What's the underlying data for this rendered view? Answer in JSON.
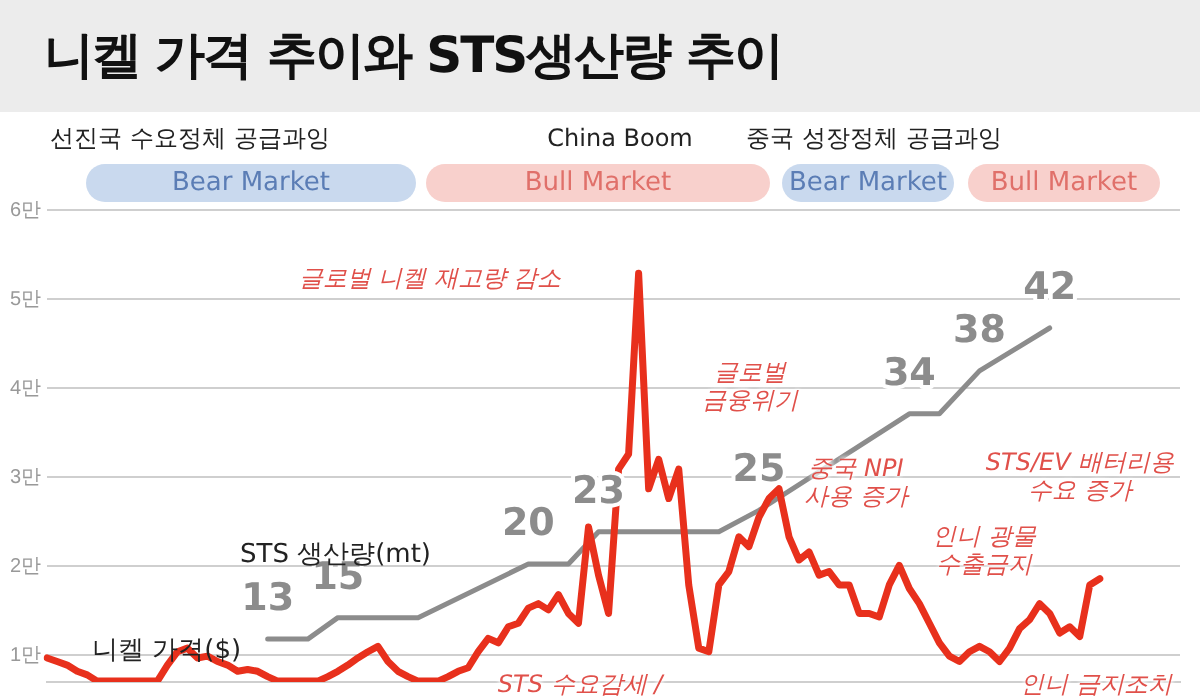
{
  "chart_data": {
    "type": "line",
    "title": "니켈 가격 추이와 STS생산량 추이",
    "categories": [
      null,
      null,
      null,
      null,
      null,
      null,
      null,
      null,
      null,
      null,
      null,
      null,
      null,
      null,
      null,
      null,
      null,
      null,
      null,
      null,
      null,
      null,
      null,
      null,
      null,
      null,
      null,
      null,
      null,
      null,
      null,
      null,
      null,
      null,
      null,
      null,
      null,
      null,
      null,
      null,
      null,
      null,
      null,
      null,
      null,
      null,
      null,
      null,
      null,
      null,
      null,
      null,
      null,
      null,
      null,
      null,
      null,
      null,
      null,
      null,
      null,
      null,
      null,
      null,
      null,
      null,
      null,
      null,
      null,
      null,
      null,
      null,
      null,
      null,
      null,
      null,
      null,
      null,
      null,
      null,
      null,
      null,
      null,
      null,
      null,
      null,
      null,
      null,
      null,
      null,
      null,
      null,
      null,
      null,
      null,
      null,
      null,
      null,
      null,
      null,
      null,
      null,
      null,
      null,
      null,
      null,
      null,
      null,
      null,
      null,
      null,
      null,
      null,
      null
    ],
    "series": [
      {
        "name": "니켈 가격($)",
        "color": "#e8301c",
        "values": [
          0.97,
          0.93,
          0.89,
          0.82,
          0.78,
          0.71,
          0.71,
          0.71,
          0.71,
          0.71,
          0.71,
          0.71,
          0.89,
          1.04,
          1.08,
          0.97,
          0.99,
          0.93,
          0.89,
          0.82,
          0.84,
          0.82,
          0.76,
          0.71,
          0.71,
          0.71,
          0.71,
          0.71,
          0.76,
          0.82,
          0.89,
          0.97,
          1.04,
          1.1,
          0.93,
          0.82,
          0.76,
          0.71,
          0.71,
          0.71,
          0.76,
          0.82,
          0.86,
          1.04,
          1.19,
          1.14,
          1.32,
          1.36,
          1.53,
          1.58,
          1.51,
          1.68,
          1.47,
          1.36,
          2.44,
          1.9,
          1.47,
          3.09,
          3.26,
          5.29,
          2.87,
          3.2,
          2.76,
          3.09,
          1.79,
          1.08,
          1.04,
          1.79,
          1.94,
          2.33,
          2.22,
          2.55,
          2.76,
          2.87,
          2.33,
          2.07,
          2.16,
          1.9,
          1.94,
          1.79,
          1.79,
          1.47,
          1.47,
          1.43,
          1.79,
          2.01,
          1.75,
          1.58,
          1.36,
          1.14,
          0.99,
          0.93,
          1.04,
          1.1,
          1.04,
          0.93,
          1.08,
          1.3,
          1.4,
          1.58,
          1.47,
          1.25,
          1.32,
          1.21,
          1.79,
          1.86,
          null,
          null,
          null,
          null,
          null,
          null,
          null,
          null
        ]
      },
      {
        "name": "STS 생산량(mt)",
        "color": "#8c8c8c",
        "axis": "y2",
        "values": [
          null,
          null,
          null,
          null,
          null,
          null,
          null,
          null,
          null,
          null,
          null,
          null,
          null,
          null,
          null,
          null,
          null,
          null,
          null,
          null,
          null,
          null,
          13,
          null,
          null,
          null,
          13,
          null,
          null,
          15,
          null,
          null,
          null,
          null,
          null,
          null,
          null,
          15,
          null,
          null,
          null,
          null,
          null,
          null,
          null,
          null,
          null,
          null,
          20,
          null,
          null,
          null,
          20,
          null,
          null,
          23,
          null,
          null,
          null,
          null,
          null,
          null,
          null,
          null,
          null,
          null,
          null,
          23,
          null,
          null,
          null,
          25,
          null,
          null,
          null,
          null,
          null,
          null,
          null,
          null,
          null,
          null,
          null,
          null,
          null,
          null,
          34,
          null,
          null,
          34,
          null,
          null,
          null,
          38,
          null,
          null,
          null,
          null,
          null,
          null,
          42,
          null,
          null,
          null,
          null,
          null,
          null,
          null,
          null,
          null,
          null,
          null,
          null,
          null
        ],
        "value_labels": [
          null,
          null,
          null,
          null,
          null,
          null,
          null,
          null,
          null,
          null,
          null,
          null,
          null,
          null,
          null,
          null,
          null,
          null,
          null,
          null,
          null,
          null,
          "13",
          null,
          null,
          null,
          null,
          null,
          null,
          "15",
          null,
          null,
          null,
          null,
          null,
          null,
          null,
          null,
          null,
          null,
          null,
          null,
          null,
          null,
          null,
          null,
          null,
          null,
          "20",
          null,
          null,
          null,
          null,
          null,
          null,
          "23",
          null,
          null,
          null,
          null,
          null,
          null,
          null,
          null,
          null,
          null,
          null,
          null,
          null,
          null,
          null,
          "25",
          null,
          null,
          null,
          null,
          null,
          null,
          null,
          null,
          null,
          null,
          null,
          null,
          null,
          null,
          "34",
          null,
          null,
          null,
          null,
          null,
          null,
          "38",
          null,
          null,
          null,
          null,
          null,
          null,
          "42",
          null,
          null,
          null,
          null,
          null,
          null,
          null,
          null,
          null,
          null,
          null,
          null,
          null
        ]
      }
    ],
    "ylim": [
      0.7,
      6
    ],
    "yticks": [
      {
        "value": 1,
        "label": "1만"
      },
      {
        "value": 2,
        "label": "2만"
      },
      {
        "value": 3,
        "label": "3만"
      },
      {
        "value": 4,
        "label": "4만"
      },
      {
        "value": 5,
        "label": "5만"
      },
      {
        "value": 6,
        "label": "6만"
      }
    ],
    "y2lim": [
      9,
      53
    ],
    "tick_labels": "y",
    "grid": "y",
    "legend": false,
    "marker": "none",
    "line_style": "solid",
    "annotations": [
      "선진국 수요정체 공급과잉",
      "China Boom",
      "중국 성장정체 공급과잉",
      "Bear Market",
      "Bull Market",
      "Bear Market",
      "Bull Market",
      "글로벌 니켈 재고량 감소",
      "글로벌\n금융위기",
      "중국 NPI\n사용 증가",
      "인니 광물\n수출금지",
      "STS/EV 배터리용\n수요 증가",
      "STS 수요감세 /",
      "인니 금지조치"
    ]
  }
}
